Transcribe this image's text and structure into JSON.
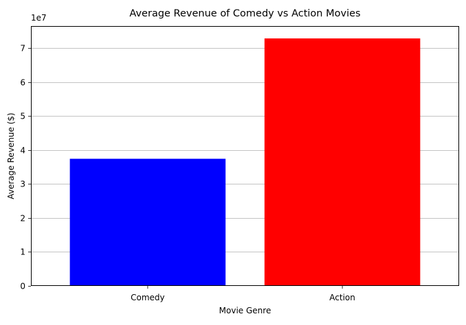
{
  "chart_data": {
    "type": "bar",
    "title": "Average Revenue of Comedy vs Action Movies",
    "xlabel": "Movie Genre",
    "ylabel": "Average Revenue ($)",
    "categories": [
      "Comedy",
      "Action"
    ],
    "values": [
      37400000,
      72800000
    ],
    "colors": [
      "#0000ff",
      "#ff0000"
    ],
    "ylim": [
      0,
      76440000
    ],
    "y_ticks": [
      0,
      10000000,
      20000000,
      30000000,
      40000000,
      50000000,
      60000000,
      70000000
    ],
    "y_tick_labels": [
      "0",
      "1",
      "2",
      "3",
      "4",
      "5",
      "6",
      "7"
    ],
    "y_offset_label": "1e7",
    "grid": "y-major",
    "grid_color": "#b0b0b0",
    "legend": "none"
  }
}
